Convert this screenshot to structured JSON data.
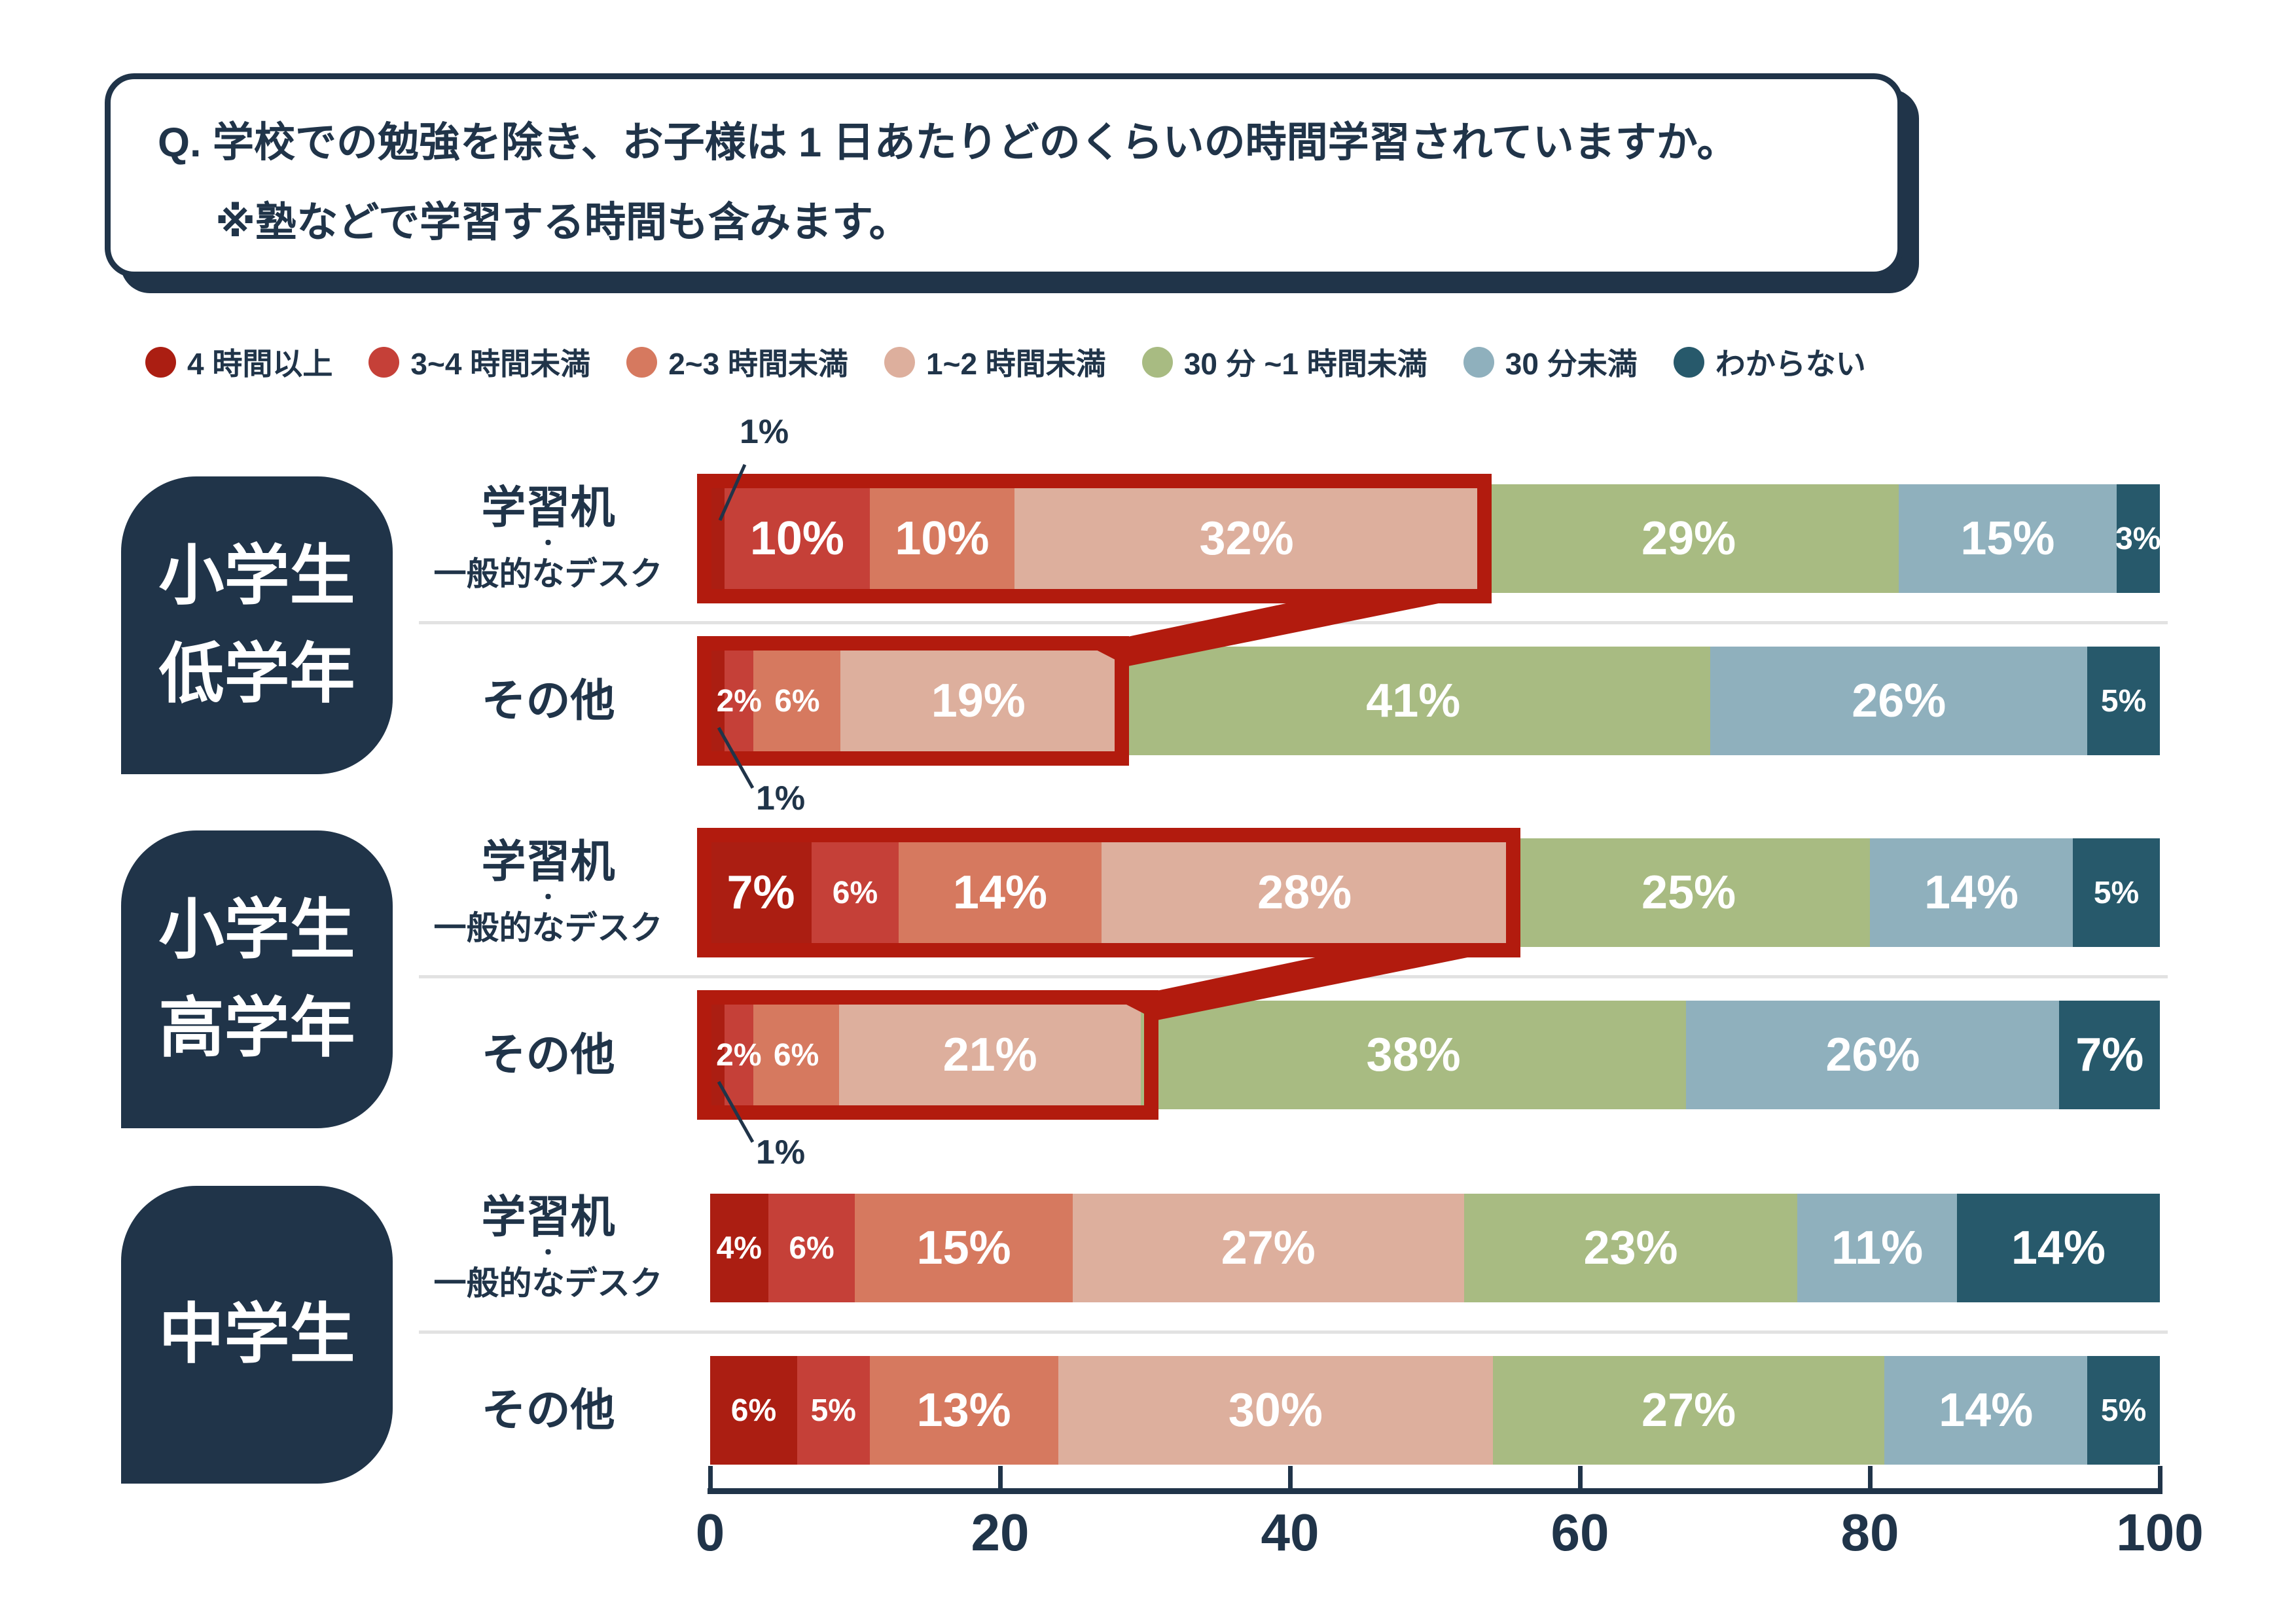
{
  "question": {
    "line1": "Q. 学校での勉強を除き、お子様は 1 日あたりどのくらいの時間学習されていますか。",
    "line2": "※塾などで学習する時間も含みます。"
  },
  "legend": {
    "items": [
      {
        "label": "4 時間以上",
        "color": "#ab1e12"
      },
      {
        "label": "3~4 時間未満",
        "color": "#c54038"
      },
      {
        "label": "2~3 時間未満",
        "color": "#d6795f"
      },
      {
        "label": "1~2 時間未満",
        "color": "#ddaf9d"
      },
      {
        "label": "30 分 ~1 時間未満",
        "color": "#a8bb82"
      },
      {
        "label": "30 分未満",
        "color": "#8fb0bd"
      },
      {
        "label": "わからない",
        "color": "#27596b"
      }
    ]
  },
  "colors": {
    "navy": "#203449",
    "highlight_red": "#b21b0e",
    "separator_gray": "#e2e2e2",
    "label_white": "#ffffff"
  },
  "annotation_small_label": "1%",
  "chart_data": {
    "type": "bar",
    "stacked": true,
    "orientation": "horizontal",
    "xlim": [
      0,
      100
    ],
    "x_ticks": [
      "0",
      "20",
      "40",
      "60",
      "80",
      "100"
    ],
    "grid": false,
    "legend_position": "top",
    "categories": [
      "4時間以上",
      "3~4時間未満",
      "2~3時間未満",
      "1~2時間未満",
      "30分~1時間未満",
      "30分未満",
      "わからない"
    ],
    "series_colors": [
      "#ab1e12",
      "#c54038",
      "#d6795f",
      "#ddaf9d",
      "#a8bb82",
      "#8fb0bd",
      "#27596b"
    ],
    "groups": [
      {
        "group": "小学生低学年",
        "group_lines": [
          "小学生",
          "低学年"
        ],
        "rows": [
          {
            "label": "学習机・一般的なデスク",
            "label_lines": [
              "学習机",
              "・",
              "一般的なデスク"
            ],
            "values": [
              1,
              10,
              10,
              32,
              29,
              15,
              3
            ],
            "highlight_segments": 4,
            "annotation_1pct": "above"
          },
          {
            "label": "その他",
            "label_lines": [
              "その他"
            ],
            "values": [
              1,
              2,
              6,
              19,
              41,
              26,
              5
            ],
            "highlight_segments": 4,
            "annotation_1pct": "below"
          }
        ]
      },
      {
        "group": "小学生高学年",
        "group_lines": [
          "小学生",
          "高学年"
        ],
        "rows": [
          {
            "label": "学習机・一般的なデスク",
            "label_lines": [
              "学習机",
              "・",
              "一般的なデスク"
            ],
            "values": [
              7,
              6,
              14,
              28,
              25,
              14,
              5
            ],
            "highlight_segments": 4,
            "annotation_1pct": null
          },
          {
            "label": "その他",
            "label_lines": [
              "その他"
            ],
            "values": [
              1,
              2,
              6,
              21,
              38,
              26,
              7
            ],
            "highlight_segments": 4,
            "annotation_1pct": "below"
          }
        ]
      },
      {
        "group": "中学生",
        "group_lines": [
          "中学生"
        ],
        "rows": [
          {
            "label": "学習机・一般的なデスク",
            "label_lines": [
              "学習机",
              "・",
              "一般的なデスク"
            ],
            "values": [
              4,
              6,
              15,
              27,
              23,
              11,
              14
            ],
            "highlight_segments": 0,
            "annotation_1pct": null
          },
          {
            "label": "その他",
            "label_lines": [
              "その他"
            ],
            "values": [
              6,
              5,
              13,
              30,
              27,
              14,
              5
            ],
            "highlight_segments": 0,
            "annotation_1pct": null
          }
        ]
      }
    ]
  }
}
